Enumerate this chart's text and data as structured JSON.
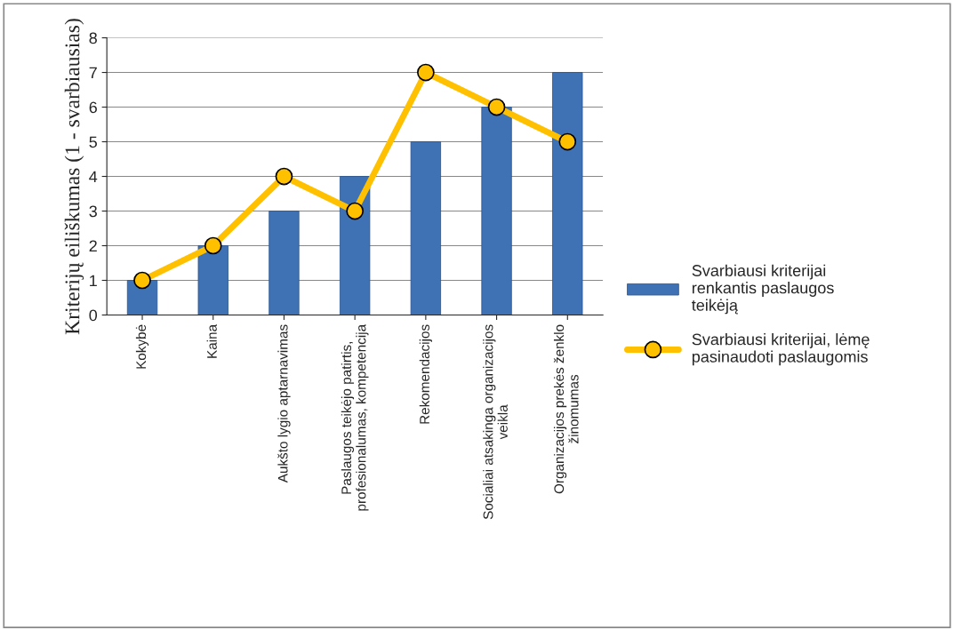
{
  "chart_data": {
    "type": "bar",
    "ylabel": "Kriterijų eiliškumas (1 - svarbiausias)",
    "categories": [
      "Kokybė",
      "Kaina",
      "Aukšto lygio aptarnavimas",
      "Paslaugos teikėjo patirtis,\nprofesionalumas, kompetencija",
      "Rekomendacijos",
      "Socialiai atsakinga organizacijos\nveikla",
      "Organizacijos prekės ženklo\nžinomumas"
    ],
    "series": [
      {
        "name": "Svarbiausi kriterijai\nrenkantis paslaugos\nteikėją",
        "color": "#3f72b5",
        "values": [
          1,
          2,
          3,
          4,
          5,
          6,
          7
        ]
      },
      {
        "name": "Svarbiausi kriterijai, lėmę\npasinaudoti paslaugomis",
        "type": "line",
        "color": "#ffc000",
        "values": [
          1,
          2,
          4,
          3,
          7,
          6,
          5
        ]
      }
    ],
    "ylim": [
      0,
      8
    ],
    "yticks": [
      0,
      1,
      2,
      3,
      4,
      5,
      6,
      7,
      8
    ],
    "grid": "y",
    "legend": "right",
    "marker": "circle",
    "line_style": "solid"
  }
}
